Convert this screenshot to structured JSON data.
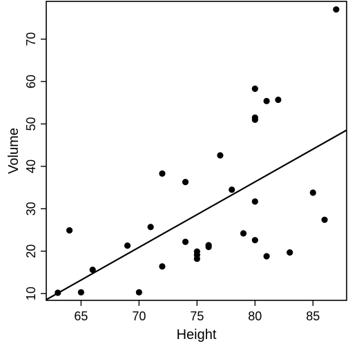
{
  "chart_data": {
    "type": "scatter",
    "title": "",
    "xlabel": "Height",
    "ylabel": "Volume",
    "xlim": [
      62.0,
      87.9
    ],
    "ylim": [
      8.4,
      78.9
    ],
    "x_ticks": [
      65,
      70,
      75,
      80,
      85
    ],
    "y_ticks": [
      10,
      20,
      30,
      40,
      50,
      60,
      70
    ],
    "grid": false,
    "legend": "none",
    "colors": {
      "points": "#000000",
      "line": "#000000",
      "frame": "#000000",
      "background": "#ffffff"
    },
    "series": [
      {
        "values": [
          {
            "x": 70,
            "y": 10.3
          },
          {
            "x": 65,
            "y": 10.3
          },
          {
            "x": 63,
            "y": 10.2
          },
          {
            "x": 72,
            "y": 16.4
          },
          {
            "x": 81,
            "y": 18.8
          },
          {
            "x": 83,
            "y": 19.7
          },
          {
            "x": 66,
            "y": 15.6
          },
          {
            "x": 75,
            "y": 18.2
          },
          {
            "x": 80,
            "y": 22.6
          },
          {
            "x": 75,
            "y": 19.9
          },
          {
            "x": 79,
            "y": 24.2
          },
          {
            "x": 76,
            "y": 21.0
          },
          {
            "x": 76,
            "y": 21.4
          },
          {
            "x": 69,
            "y": 21.3
          },
          {
            "x": 75,
            "y": 19.1
          },
          {
            "x": 74,
            "y": 22.2
          },
          {
            "x": 85,
            "y": 33.8
          },
          {
            "x": 86,
            "y": 27.4
          },
          {
            "x": 71,
            "y": 25.7
          },
          {
            "x": 64,
            "y": 24.9
          },
          {
            "x": 78,
            "y": 34.5
          },
          {
            "x": 80,
            "y": 31.7
          },
          {
            "x": 74,
            "y": 36.3
          },
          {
            "x": 72,
            "y": 38.3
          },
          {
            "x": 77,
            "y": 42.6
          },
          {
            "x": 81,
            "y": 55.4
          },
          {
            "x": 82,
            "y": 55.7
          },
          {
            "x": 80,
            "y": 58.3
          },
          {
            "x": 80,
            "y": 51.5
          },
          {
            "x": 80,
            "y": 51.0
          },
          {
            "x": 87,
            "y": 77.0
          }
        ]
      }
    ],
    "regression_line": {
      "slope": 1.5433,
      "intercept": -87.124
    }
  }
}
